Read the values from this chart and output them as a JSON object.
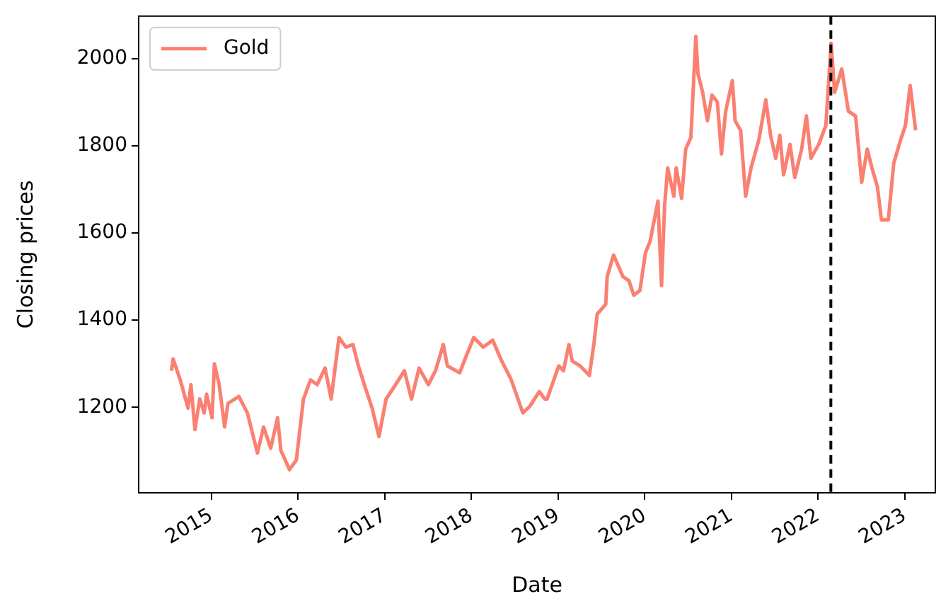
{
  "chart_data": {
    "type": "line",
    "xlabel": "Date",
    "ylabel": "Closing prices",
    "x": [
      "2014-07-17",
      "2014-07-24",
      "2014-08-23",
      "2014-09-25",
      "2014-10-07",
      "2014-10-24",
      "2014-11-13",
      "2014-12-02",
      "2014-12-12",
      "2015-01-04",
      "2015-01-14",
      "2015-02-03",
      "2015-02-26",
      "2015-03-12",
      "2015-04-27",
      "2015-06-02",
      "2015-07-14",
      "2015-08-09",
      "2015-09-08",
      "2015-10-07",
      "2015-10-21",
      "2015-11-26",
      "2015-12-25",
      "2016-01-24",
      "2016-02-23",
      "2016-03-22",
      "2016-04-24",
      "2016-05-20",
      "2016-06-22",
      "2016-07-21",
      "2016-08-20",
      "2016-09-12",
      "2016-10-07",
      "2016-11-09",
      "2016-12-08",
      "2017-01-07",
      "2017-02-16",
      "2017-03-25",
      "2017-04-24",
      "2017-05-26",
      "2017-07-04",
      "2017-08-03",
      "2017-09-05",
      "2017-09-22",
      "2017-11-13",
      "2017-12-02",
      "2018-01-11",
      "2018-02-20",
      "2018-04-01",
      "2018-05-09",
      "2018-06-18",
      "2018-08-06",
      "2018-09-05",
      "2018-10-14",
      "2018-11-06",
      "2018-11-16",
      "2019-01-04",
      "2019-01-24",
      "2019-02-16",
      "2019-03-02",
      "2019-04-04",
      "2019-05-13",
      "2019-06-02",
      "2019-06-15",
      "2019-07-21",
      "2019-07-27",
      "2019-08-23",
      "2019-10-01",
      "2019-10-27",
      "2019-11-16",
      "2019-12-12",
      "2020-01-04",
      "2020-01-24",
      "2020-02-26",
      "2020-03-12",
      "2020-03-25",
      "2020-04-07",
      "2020-05-03",
      "2020-05-13",
      "2020-06-05",
      "2020-06-22",
      "2020-07-14",
      "2020-08-04",
      "2020-08-13",
      "2020-09-02",
      "2020-09-22",
      "2020-10-11",
      "2020-11-03",
      "2020-11-20",
      "2020-12-08",
      "2021-01-05",
      "2021-01-17",
      "2021-02-09",
      "2021-03-02",
      "2021-03-25",
      "2021-04-27",
      "2021-05-26",
      "2021-06-15",
      "2021-07-07",
      "2021-07-24",
      "2021-08-09",
      "2021-09-05",
      "2021-09-25",
      "2021-10-24",
      "2021-11-13",
      "2021-12-02",
      "2022-01-04",
      "2022-02-03",
      "2022-02-25",
      "2022-03-12",
      "2022-04-11",
      "2022-05-09",
      "2022-06-08",
      "2022-07-04",
      "2022-07-27",
      "2022-08-16",
      "2022-09-08",
      "2022-09-25",
      "2022-10-24",
      "2022-11-16",
      "2022-12-15",
      "2023-01-04",
      "2023-01-24",
      "2023-02-16"
    ],
    "series": [
      {
        "name": "Gold",
        "color": "#fa8072",
        "values": [
          1284,
          1311,
          1263,
          1198,
          1252,
          1149,
          1219,
          1187,
          1230,
          1176,
          1300,
          1252,
          1155,
          1209,
          1225,
          1187,
          1095,
          1155,
          1106,
          1176,
          1101,
          1057,
          1079,
          1219,
          1263,
          1252,
          1290,
          1219,
          1360,
          1338,
          1344,
          1295,
          1252,
          1198,
          1133,
          1219,
          1252,
          1284,
          1219,
          1290,
          1252,
          1284,
          1344,
          1295,
          1279,
          1306,
          1360,
          1338,
          1354,
          1306,
          1263,
          1187,
          1203,
          1236,
          1219,
          1219,
          1295,
          1284,
          1344,
          1306,
          1295,
          1273,
          1349,
          1414,
          1436,
          1500,
          1549,
          1500,
          1490,
          1457,
          1468,
          1554,
          1581,
          1673,
          1479,
          1662,
          1749,
          1684,
          1749,
          1679,
          1792,
          1819,
          2051,
          1965,
          1922,
          1857,
          1916,
          1900,
          1781,
          1879,
          1949,
          1857,
          1835,
          1684,
          1749,
          1814,
          1905,
          1824,
          1771,
          1824,
          1733,
          1803,
          1727,
          1792,
          1868,
          1771,
          1803,
          1846,
          2035,
          1922,
          1976,
          1879,
          1868,
          1716,
          1792,
          1749,
          1706,
          1630,
          1630,
          1760,
          1814,
          1846,
          1938,
          1835
        ]
      }
    ],
    "xlim": [
      "2014-03-01",
      "2023-05-10"
    ],
    "xticks": [
      "2015",
      "2016",
      "2017",
      "2018",
      "2019",
      "2020",
      "2021",
      "2022",
      "2023"
    ],
    "ylim": [
      1004,
      2097
    ],
    "yticks": [
      1200,
      1400,
      1600,
      1800,
      2000
    ],
    "ref_lines": [
      {
        "axis": "x",
        "value": "2022-02-24",
        "color": "#000000",
        "line_style": "dashed"
      }
    ],
    "legend": "top left",
    "grid": false,
    "marker": "none",
    "line_style": "solid"
  }
}
